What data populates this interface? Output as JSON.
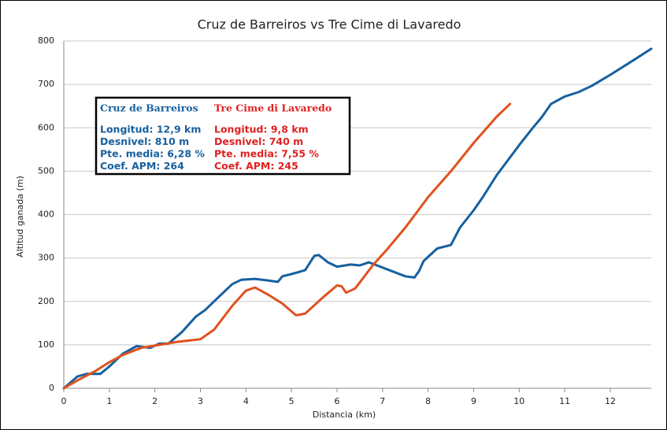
{
  "chart_data": {
    "type": "line",
    "title": "Cruz de Barreiros vs Tre Cime di Lavaredo",
    "x_label": "Distancia (km)",
    "y_label": "Altitud ganada (m)",
    "xlim": [
      0,
      12.9
    ],
    "xticks": [
      0,
      1,
      2,
      3,
      4,
      5,
      6,
      7,
      8,
      9,
      10,
      11,
      12
    ],
    "ylim": [
      0,
      800
    ],
    "yticks": [
      0,
      100,
      200,
      300,
      400,
      500,
      600,
      700,
      800
    ],
    "grid": true,
    "series": [
      {
        "name": "Cruz de Barreiros",
        "color": "#17609f",
        "x": [
          0,
          0.3,
          0.5,
          0.8,
          1.0,
          1.3,
          1.6,
          1.9,
          2.1,
          2.3,
          2.6,
          2.9,
          3.1,
          3.4,
          3.7,
          3.9,
          4.2,
          4.5,
          4.7,
          4.8,
          5.0,
          5.3,
          5.5,
          5.6,
          5.8,
          6.0,
          6.3,
          6.5,
          6.7,
          6.9,
          7.2,
          7.5,
          7.7,
          7.8,
          7.9,
          8.2,
          8.5,
          8.7,
          9.0,
          9.2,
          9.5,
          10.0,
          10.3,
          10.5,
          10.7,
          11.0,
          11.3,
          11.6,
          12.0,
          12.5,
          12.9
        ],
        "values": [
          0,
          27,
          33,
          33,
          50,
          80,
          97,
          93,
          103,
          103,
          130,
          165,
          180,
          210,
          240,
          250,
          252,
          248,
          245,
          258,
          263,
          272,
          305,
          307,
          290,
          280,
          285,
          283,
          290,
          282,
          270,
          258,
          255,
          270,
          293,
          322,
          330,
          370,
          410,
          440,
          490,
          560,
          600,
          625,
          655,
          672,
          682,
          697,
          722,
          755,
          782
        ]
      },
      {
        "name": "Tre Cime di Lavaredo",
        "color": "#e0521f",
        "x": [
          0,
          0.3,
          0.7,
          1.0,
          1.3,
          1.7,
          2.1,
          2.5,
          3.0,
          3.3,
          3.7,
          4.0,
          4.2,
          4.5,
          4.8,
          5.1,
          5.3,
          5.7,
          6.0,
          6.1,
          6.2,
          6.4,
          6.8,
          7.1,
          7.5,
          8.0,
          8.5,
          9.0,
          9.5,
          9.8
        ],
        "values": [
          0,
          18,
          40,
          60,
          77,
          93,
          100,
          107,
          113,
          135,
          190,
          225,
          232,
          215,
          195,
          168,
          172,
          210,
          237,
          235,
          220,
          230,
          285,
          320,
          370,
          440,
          500,
          565,
          625,
          655
        ]
      }
    ],
    "annotation_box": [
      {
        "title": "Cruz de Barreiros",
        "color": "#17609f",
        "lines": [
          "Longitud: 12,9 km",
          "Desnivel: 810 m",
          "Pte. media: 6,28 %",
          "Coef. APM: 264"
        ]
      },
      {
        "title": "Tre Cime di Lavaredo",
        "color": "#e02020",
        "lines": [
          "Longitud: 9,8 km",
          "Desnivel: 740 m",
          "Pte. media:  7,55 %",
          "Coef. APM:  245"
        ]
      }
    ]
  }
}
